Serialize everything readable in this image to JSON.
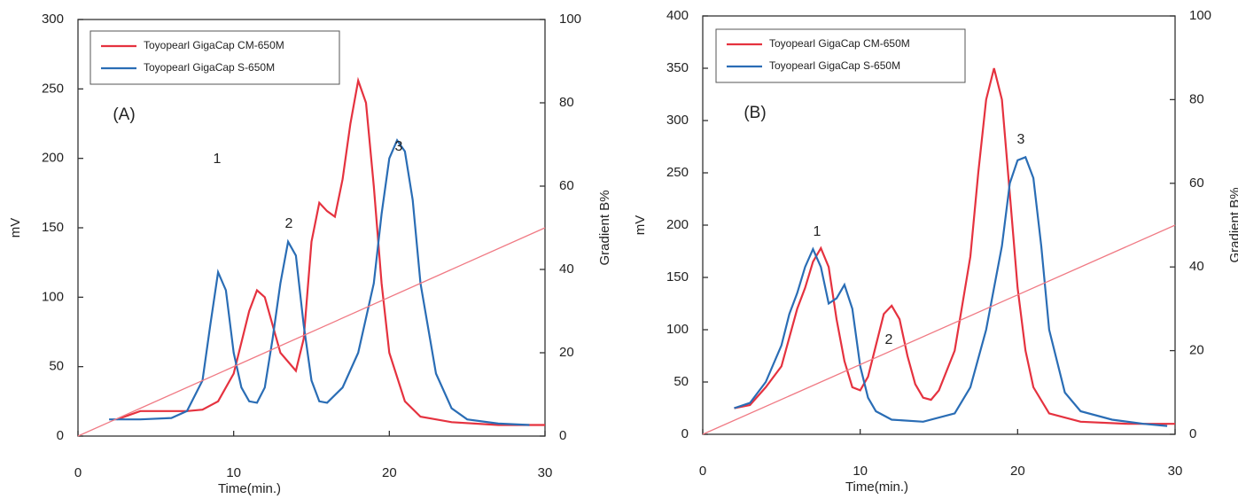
{
  "chart_data": [
    {
      "type": "line",
      "panel_label": "(A)",
      "xlabel": "Time(min.)",
      "ylabel": "mV",
      "y2label": "Gradient B%",
      "xlim": [
        0,
        30
      ],
      "xticks": [
        0,
        10,
        20,
        30
      ],
      "ylim": [
        0,
        300
      ],
      "yticks": [
        0,
        50,
        100,
        150,
        200,
        250,
        300
      ],
      "y2lim": [
        0,
        100
      ],
      "y2ticks": [
        0,
        20,
        40,
        60,
        80,
        100
      ],
      "legend": "upper left",
      "series": [
        {
          "name": "Toyopearl GigaCap CM-650M",
          "color": "#e5323f",
          "x": [
            2.5,
            4,
            5,
            7,
            8,
            9,
            10,
            11,
            11.5,
            12,
            13,
            14,
            14.5,
            15,
            15.5,
            16,
            16.5,
            17,
            17.5,
            18,
            18.5,
            19,
            19.5,
            20,
            21,
            22,
            24,
            27,
            30
          ],
          "values": [
            12,
            18,
            18,
            18,
            19,
            25,
            45,
            90,
            105,
            100,
            60,
            47,
            70,
            140,
            168,
            162,
            158,
            185,
            225,
            256,
            240,
            180,
            110,
            60,
            25,
            14,
            10,
            8,
            8
          ]
        },
        {
          "name": "Toyopearl GigaCap S-650M",
          "color": "#2a6db5",
          "x": [
            2,
            4,
            6,
            7,
            8,
            8.5,
            9,
            9.5,
            10,
            10.5,
            11,
            11.5,
            12,
            12.5,
            13,
            13.5,
            14,
            14.5,
            15,
            15.5,
            16,
            17,
            18,
            19,
            19.5,
            20,
            20.5,
            21,
            21.5,
            22,
            23,
            24,
            25,
            27,
            29
          ],
          "values": [
            12,
            12,
            13,
            18,
            40,
            80,
            118,
            105,
            60,
            35,
            25,
            24,
            35,
            70,
            110,
            140,
            130,
            80,
            40,
            25,
            24,
            35,
            60,
            110,
            160,
            200,
            213,
            205,
            170,
            110,
            45,
            20,
            12,
            9,
            8
          ]
        },
        {
          "color": "#f07a84",
          "axis": "y2",
          "x": [
            0,
            30
          ],
          "values": [
            0,
            50
          ]
        }
      ],
      "annotations": [
        "1",
        "2",
        "3"
      ]
    },
    {
      "type": "line",
      "panel_label": "(B)",
      "xlabel": "Time(min.)",
      "ylabel": "mV",
      "y2label": "Gradient B%",
      "xlim": [
        0,
        30
      ],
      "xticks": [
        0,
        10,
        20,
        30
      ],
      "ylim": [
        0,
        400
      ],
      "yticks": [
        0,
        50,
        100,
        150,
        200,
        250,
        300,
        350,
        400
      ],
      "y2lim": [
        0,
        100
      ],
      "y2ticks": [
        0,
        20,
        40,
        60,
        80,
        100
      ],
      "legend": "upper left",
      "series": [
        {
          "name": "Toyopearl GigaCap CM-650M",
          "color": "#e5323f",
          "x": [
            2,
            3,
            4,
            5,
            6,
            6.5,
            7,
            7.5,
            8,
            8.5,
            9,
            9.5,
            10,
            10.5,
            11,
            11.5,
            12,
            12.5,
            13,
            13.5,
            14,
            14.5,
            15,
            16,
            17,
            17.5,
            18,
            18.5,
            19,
            19.5,
            20,
            20.5,
            21,
            22,
            24,
            27,
            30
          ],
          "values": [
            25,
            28,
            45,
            65,
            120,
            140,
            165,
            178,
            160,
            110,
            70,
            45,
            42,
            55,
            85,
            115,
            123,
            110,
            75,
            48,
            35,
            33,
            42,
            80,
            170,
            250,
            320,
            350,
            320,
            230,
            140,
            80,
            45,
            20,
            12,
            10,
            10
          ]
        },
        {
          "name": "Toyopearl GigaCap S-650M",
          "color": "#2a6db5",
          "x": [
            2,
            3,
            4,
            5,
            5.5,
            6,
            6.5,
            7,
            7.5,
            8,
            8.5,
            9,
            9.5,
            10,
            10.5,
            11,
            12,
            14,
            16,
            17,
            18,
            19,
            19.5,
            20,
            20.5,
            21,
            21.5,
            22,
            23,
            24,
            26,
            28,
            29.5
          ],
          "values": [
            25,
            30,
            50,
            85,
            115,
            135,
            160,
            177,
            160,
            125,
            130,
            143,
            120,
            65,
            35,
            22,
            14,
            12,
            20,
            45,
            100,
            180,
            240,
            262,
            265,
            245,
            180,
            100,
            40,
            22,
            14,
            10,
            8
          ]
        },
        {
          "color": "#f07a84",
          "axis": "y2",
          "x": [
            0,
            30
          ],
          "values": [
            0,
            50
          ]
        }
      ],
      "annotations": [
        "1",
        "2",
        "3"
      ]
    }
  ]
}
